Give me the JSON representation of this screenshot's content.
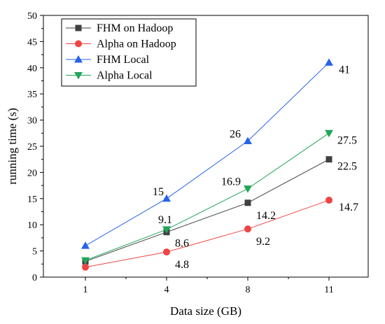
{
  "chart_data": {
    "type": "line",
    "xlabel": "Data size (GB)",
    "ylabel": "running time (s)",
    "categories": [
      "1",
      "4",
      "8",
      "11"
    ],
    "ylim": [
      0,
      50
    ],
    "yticks": [
      0,
      5,
      10,
      15,
      20,
      25,
      30,
      35,
      40,
      45,
      50
    ],
    "legend_position": "top-left",
    "grid": false,
    "series": [
      {
        "name": "FHM on Hadoop",
        "values": [
          3,
          8.6,
          14.2,
          22.5
        ],
        "color": "#404040",
        "marker": "square",
        "labels": [
          "",
          "8.6",
          "14.2",
          "22.5"
        ]
      },
      {
        "name": "Alpha on Hadoop",
        "values": [
          1.9,
          4.8,
          9.2,
          14.7
        ],
        "color": "#ef4444",
        "marker": "circle",
        "labels": [
          "",
          "4.8",
          "9.2",
          "14.7"
        ]
      },
      {
        "name": "FHM Local",
        "values": [
          6,
          15,
          26,
          41
        ],
        "color": "#2563eb",
        "marker": "triangle-up",
        "labels": [
          "",
          "15",
          "26",
          "41"
        ]
      },
      {
        "name": "Alpha Local",
        "values": [
          3.2,
          9.1,
          16.9,
          27.5
        ],
        "color": "#22a55a",
        "marker": "triangle-down",
        "labels": [
          "",
          "9.1",
          "16.9",
          "27.5"
        ]
      }
    ]
  }
}
